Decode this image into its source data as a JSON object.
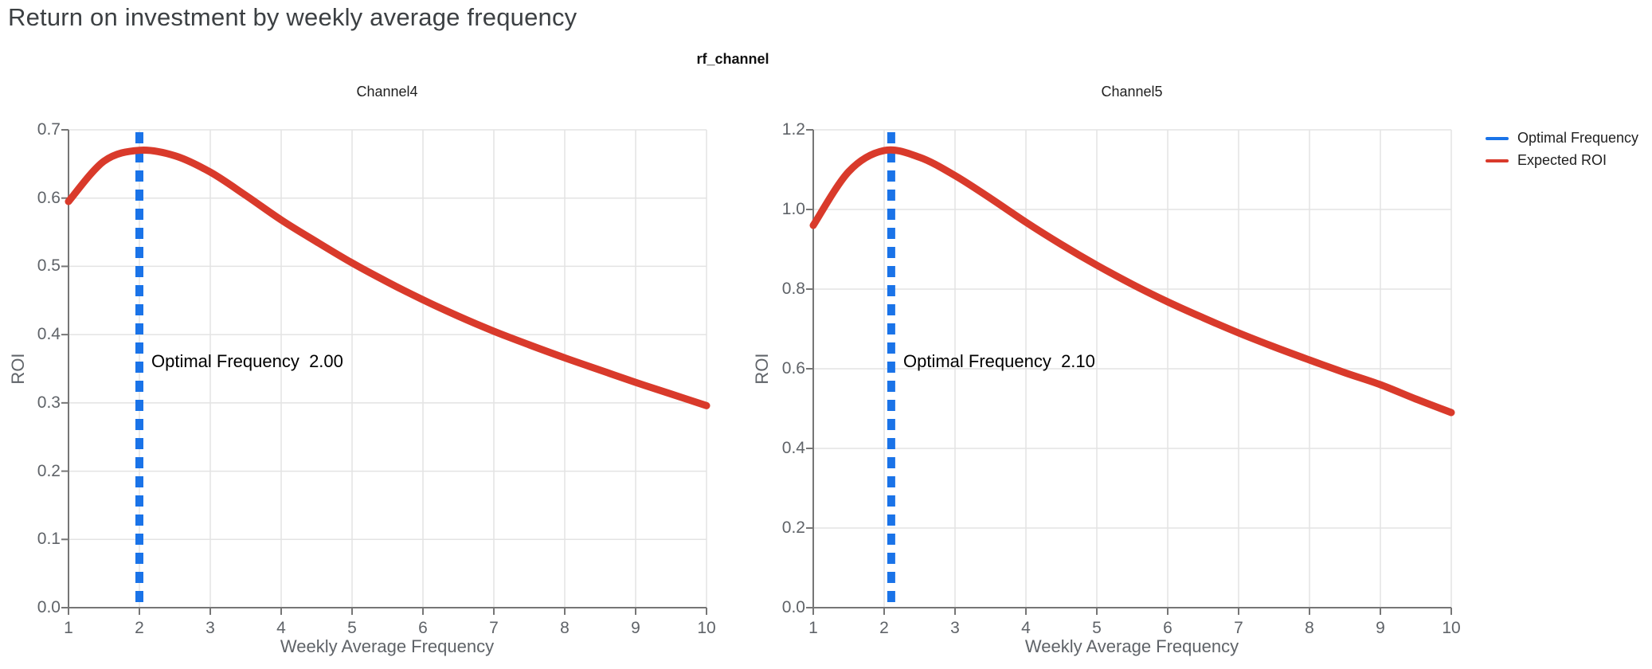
{
  "title": "Return on investment by weekly average frequency",
  "figure_title": "rf_channel",
  "legend": [
    {
      "label": "Optimal Frequency",
      "color": "#1a73e8"
    },
    {
      "label": "Expected ROI",
      "color": "#d93a2b"
    }
  ],
  "colors": {
    "roi_curve": "#d93a2b",
    "optimal_line": "#1a73e8",
    "grid": "#e3e3e3",
    "axis": "#767676",
    "tick_text": "#5f6368",
    "title_text": "#3c4043"
  },
  "chart_data": [
    {
      "type": "line",
      "title": "Channel4",
      "xlabel": "Weekly Average Frequency",
      "ylabel": "ROI",
      "xlim": [
        1,
        10
      ],
      "ylim": [
        0,
        0.7
      ],
      "xticks": [
        1,
        2,
        3,
        4,
        5,
        6,
        7,
        8,
        9,
        10
      ],
      "yticks": [
        0.0,
        0.1,
        0.2,
        0.3,
        0.4,
        0.5,
        0.6,
        0.7
      ],
      "grid": true,
      "optimal_frequency": 2.0,
      "annotation": "Optimal Frequency  2.00",
      "series": [
        {
          "name": "Expected ROI",
          "x": [
            1,
            1.5,
            2,
            2.5,
            3,
            3.5,
            4,
            4.5,
            5,
            5.5,
            6,
            6.5,
            7,
            7.5,
            8,
            8.5,
            9,
            9.5,
            10
          ],
          "y": [
            0.595,
            0.654,
            0.67,
            0.662,
            0.638,
            0.604,
            0.568,
            0.536,
            0.505,
            0.477,
            0.451,
            0.427,
            0.405,
            0.385,
            0.366,
            0.348,
            0.33,
            0.313,
            0.296
          ]
        }
      ]
    },
    {
      "type": "line",
      "title": "Channel5",
      "xlabel": "Weekly Average Frequency",
      "ylabel": "ROI",
      "xlim": [
        1,
        10
      ],
      "ylim": [
        0,
        1.2
      ],
      "xticks": [
        1,
        2,
        3,
        4,
        5,
        6,
        7,
        8,
        9,
        10
      ],
      "yticks": [
        0.0,
        0.2,
        0.4,
        0.6,
        0.8,
        1.0,
        1.2
      ],
      "grid": true,
      "optimal_frequency": 2.1,
      "annotation": "Optimal Frequency  2.10",
      "series": [
        {
          "name": "Expected ROI",
          "x": [
            1,
            1.5,
            2,
            2.5,
            3,
            3.5,
            4,
            4.5,
            5,
            5.5,
            6,
            6.5,
            7,
            7.5,
            8,
            8.5,
            9,
            9.5,
            10
          ],
          "y": [
            0.96,
            1.095,
            1.148,
            1.131,
            1.085,
            1.028,
            0.968,
            0.912,
            0.86,
            0.812,
            0.768,
            0.728,
            0.69,
            0.655,
            0.622,
            0.59,
            0.56,
            0.524,
            0.49
          ]
        }
      ]
    }
  ]
}
